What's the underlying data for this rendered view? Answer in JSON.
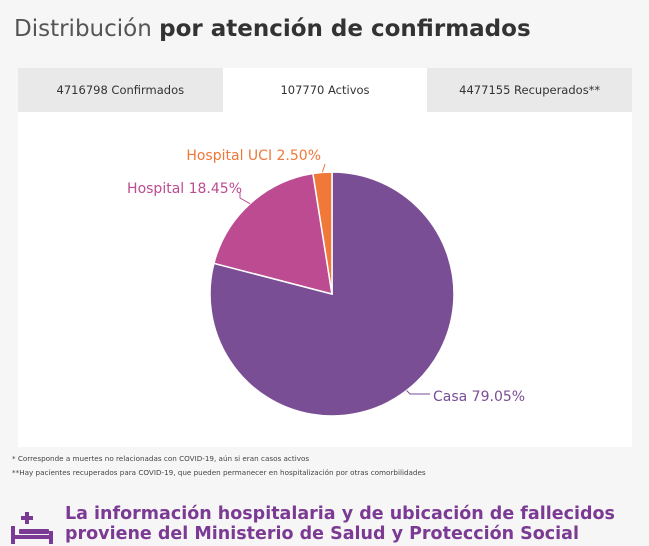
{
  "heading": {
    "light": "Distribución",
    "bold": "por atención de confirmados"
  },
  "tabs": [
    {
      "label": "4716798 Confirmados"
    },
    {
      "label": "107770 Activos"
    },
    {
      "label": "4477155 Recuperados**"
    }
  ],
  "chart_data": {
    "type": "pie",
    "slices": [
      {
        "label": "Casa 79.05%",
        "value": 79.05,
        "color": "#7a4e94"
      },
      {
        "label": "Hospital 18.45%",
        "value": 18.45,
        "color": "#bd4b92"
      },
      {
        "label": "Hospital UCI 2.50%",
        "value": 2.5,
        "color": "#f07838"
      }
    ]
  },
  "notes": {
    "line1": "* Corresponde a muertes no relacionadas con COVID-19, aún si eran casos activos",
    "line2": "**Hay pacientes recuperados para COVID-19, que pueden permanecer en hospitalización por otras comorbilidades"
  },
  "footer": {
    "line1": "La información hospitalaria y de ubicación de fallecidos",
    "line2": "proviene del Ministerio de Salud y Protección Social",
    "icon": "hospital-bed-icon",
    "color": "#7b3a93"
  }
}
